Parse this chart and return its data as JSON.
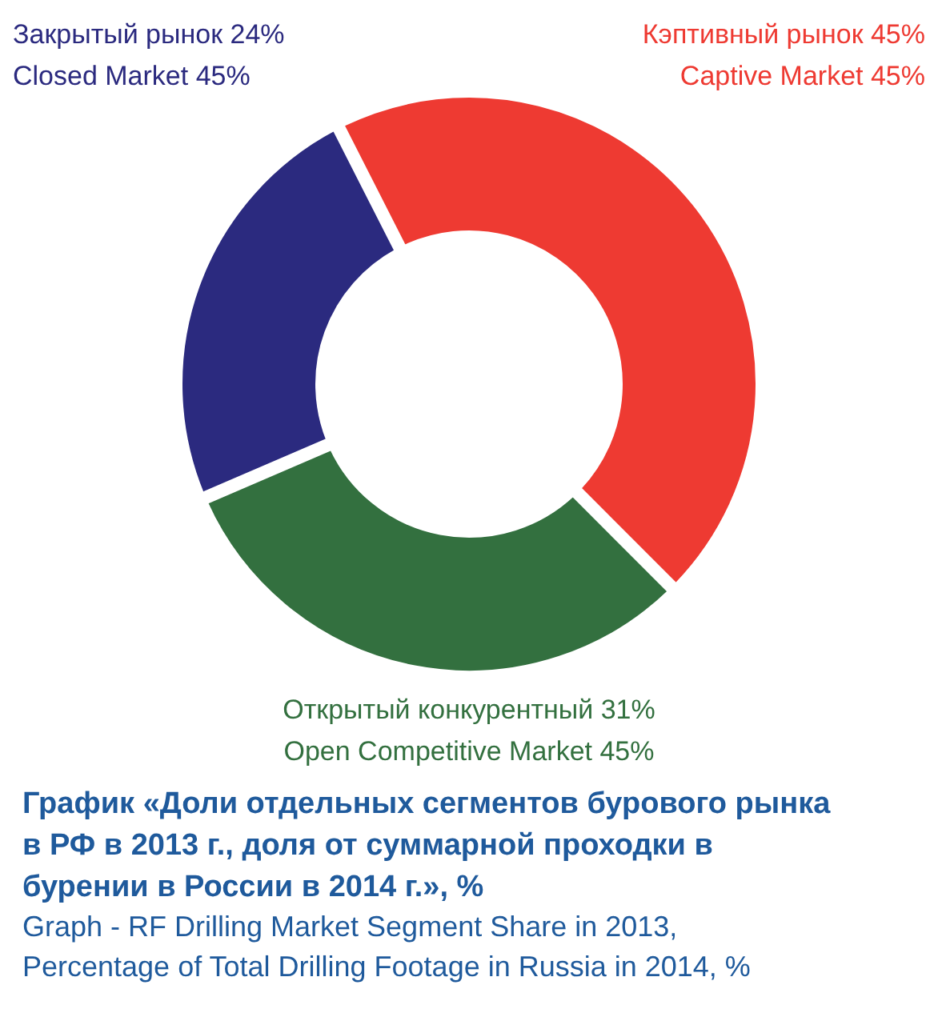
{
  "chart_data": {
    "type": "donut",
    "title": "График «Доли отдельных сегментов бурового рынка в РФ в 2013 г., доля от суммарной проходки в бурении в России в 2014 г.», %",
    "subtitle": "Graph - RF Drilling Market Segment Share in 2013, Percentage of  Total Drilling Footage in Russia in 2014, %",
    "categories": [
      "Кэптивный рынок",
      "Открытый конкурентный",
      "Закрытый рынок"
    ],
    "values": [
      45,
      31,
      24
    ],
    "value_labels": [
      "45%",
      "31%",
      "24%"
    ],
    "colors": [
      "#ee3a32",
      "#33703f",
      "#2b2a7f"
    ],
    "annotations": [
      "Captive Market 45%",
      "Open Competitive Market 45%",
      "Closed Market  45%"
    ]
  }
}
